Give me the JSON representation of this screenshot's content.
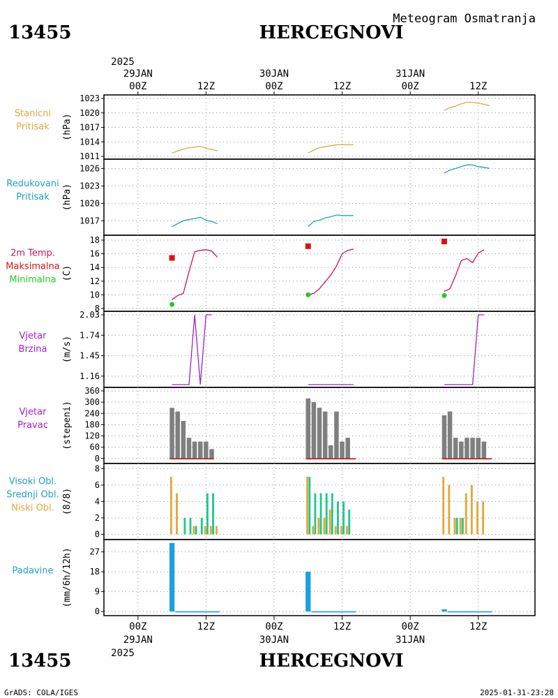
{
  "header": {
    "station_id": "13455",
    "station_name": "HERCEGNOVI",
    "meteogram_title": "Meteogram Osmatranja"
  },
  "footer": {
    "station_id": "13455",
    "station_name": "HERCEGNOVI",
    "credit": "GrADS: COLA/IGES",
    "timestamp": "2025-01-31-23:28"
  },
  "time_axis": {
    "range_hours": [
      -6,
      70
    ],
    "top_year": "2025",
    "bottom_year": "2025",
    "ticks": [
      {
        "h": 0,
        "label": "00Z",
        "date": "29JAN"
      },
      {
        "h": 12,
        "label": "12Z",
        "date": ""
      },
      {
        "h": 24,
        "label": "00Z",
        "date": "30JAN"
      },
      {
        "h": 36,
        "label": "12Z",
        "date": ""
      },
      {
        "h": 48,
        "label": "00Z",
        "date": "31JAN"
      },
      {
        "h": 60,
        "label": "12Z",
        "date": ""
      }
    ]
  },
  "colors": {
    "orange": "#e0a83c",
    "cyan": "#1ea0c8",
    "red": "#e01010",
    "magenta": "#c8145a",
    "green": "#22cc22",
    "purple": "#a020c8",
    "gray": "#7f7f7f",
    "teal": "#1ec88c",
    "blue": "#1ea0dc",
    "dark_red": "#c81414"
  },
  "chart_data": [
    {
      "id": "stanicni",
      "type": "line",
      "labels": [
        {
          "text": "Stanicni",
          "color": "#e0a83c"
        },
        {
          "text": "Pritisak",
          "color": "#e0a83c"
        }
      ],
      "ylabel": "(hPa)",
      "ylim": [
        1011,
        1023
      ],
      "yticks": [
        1011,
        1014,
        1017,
        1020,
        1023
      ],
      "series": [
        {
          "color": "#e0a83c",
          "segments": [
            [
              [
                6,
                1011.7
              ],
              [
                7,
                1012.1
              ],
              [
                8,
                1012.5
              ],
              [
                9,
                1012.8
              ],
              [
                10,
                1012.9
              ],
              [
                11,
                1013.1
              ],
              [
                12,
                1012.6
              ],
              [
                13,
                1012.5
              ],
              [
                14,
                1012.1
              ]
            ],
            [
              [
                30,
                1011.7
              ],
              [
                31,
                1012.3
              ],
              [
                32,
                1012.8
              ],
              [
                33,
                1013.0
              ],
              [
                34,
                1013.2
              ],
              [
                35,
                1013.4
              ],
              [
                36,
                1013.4
              ],
              [
                37,
                1013.4
              ],
              [
                38,
                1013.4
              ]
            ],
            [
              [
                54,
                1020.5
              ],
              [
                55,
                1021.1
              ],
              [
                56,
                1021.4
              ],
              [
                57,
                1021.9
              ],
              [
                58,
                1022.2
              ],
              [
                59,
                1022.2
              ],
              [
                60,
                1022.0
              ],
              [
                61,
                1021.8
              ],
              [
                62,
                1021.5
              ]
            ]
          ]
        }
      ]
    },
    {
      "id": "redukovani",
      "type": "line",
      "labels": [
        {
          "text": "Redukovani",
          "color": "#1ea0c8"
        },
        {
          "text": "Pritisak",
          "color": "#1ea0c8"
        }
      ],
      "ylabel": "(hPa)",
      "ylim": [
        1015,
        1027
      ],
      "yticks": [
        1017,
        1020,
        1023,
        1026
      ],
      "series": [
        {
          "color": "#1ea0c8",
          "segments": [
            [
              [
                6,
                1016.0
              ],
              [
                7,
                1016.5
              ],
              [
                8,
                1017.0
              ],
              [
                9,
                1017.2
              ],
              [
                10,
                1017.4
              ],
              [
                11,
                1017.6
              ],
              [
                12,
                1017.1
              ],
              [
                13,
                1016.9
              ],
              [
                14,
                1016.5
              ]
            ],
            [
              [
                30,
                1016.0
              ],
              [
                31,
                1016.9
              ],
              [
                32,
                1017.1
              ],
              [
                33,
                1017.5
              ],
              [
                34,
                1017.7
              ],
              [
                35,
                1018.0
              ],
              [
                36,
                1017.9
              ],
              [
                37,
                1017.9
              ],
              [
                38,
                1017.9
              ]
            ],
            [
              [
                54,
                1025.2
              ],
              [
                55,
                1025.7
              ],
              [
                56,
                1026.0
              ],
              [
                57,
                1026.3
              ],
              [
                58,
                1026.6
              ],
              [
                59,
                1026.6
              ],
              [
                60,
                1026.3
              ],
              [
                61,
                1026.2
              ],
              [
                62,
                1026.0
              ]
            ]
          ]
        }
      ]
    },
    {
      "id": "temperatura",
      "type": "line",
      "labels": [
        {
          "text": "2m Temp.",
          "color": "#c8145a"
        },
        {
          "text": "Maksimalna",
          "color": "#e01010"
        },
        {
          "text": "Minimalna",
          "color": "#22cc22"
        }
      ],
      "ylabel": "(C)",
      "ylim": [
        8,
        18.2
      ],
      "yticks": [
        8,
        10,
        12,
        14,
        16,
        18
      ],
      "series": [
        {
          "color": "#c8145a",
          "segments": [
            [
              [
                6,
                9.3
              ],
              [
                7,
                9.9
              ],
              [
                8,
                10.2
              ],
              [
                9,
                13.4
              ],
              [
                10,
                16.3
              ],
              [
                11,
                16.5
              ],
              [
                12,
                16.6
              ],
              [
                13,
                16.4
              ],
              [
                14,
                15.5
              ]
            ],
            [
              [
                30,
                10.0
              ],
              [
                31,
                10.2
              ],
              [
                32,
                10.9
              ],
              [
                33,
                11.9
              ],
              [
                34,
                12.9
              ],
              [
                35,
                14.2
              ],
              [
                36,
                16.0
              ],
              [
                37,
                16.5
              ],
              [
                38,
                16.7
              ]
            ],
            [
              [
                54,
                10.5
              ],
              [
                55,
                10.9
              ],
              [
                56,
                12.8
              ],
              [
                57,
                15.0
              ],
              [
                58,
                15.3
              ],
              [
                59,
                14.7
              ],
              [
                60,
                16.1
              ],
              [
                61,
                16.6
              ]
            ]
          ]
        }
      ],
      "max_points": [
        [
          6,
          15.4
        ],
        [
          30,
          17.1
        ],
        [
          54,
          17.8
        ]
      ],
      "min_points": [
        [
          6,
          8.6
        ],
        [
          30,
          10.0
        ],
        [
          54,
          9.9
        ]
      ]
    },
    {
      "id": "brzina",
      "type": "line",
      "labels": [
        {
          "text": "Vjetar",
          "color": "#a020c8"
        },
        {
          "text": "Brzina",
          "color": "#a020c8"
        }
      ],
      "ylabel": "(m/s)",
      "ylim": [
        1.04,
        2.03
      ],
      "yticks": [
        1.16,
        1.45,
        1.74,
        2.03
      ],
      "series": [
        {
          "color": "#a020c8",
          "segments": [
            [
              [
                6,
                1.04
              ],
              [
                7,
                1.04
              ],
              [
                8,
                1.04
              ],
              [
                9,
                1.04
              ],
              [
                10,
                2.03
              ],
              [
                11,
                1.04
              ],
              [
                12,
                2.03
              ],
              [
                13,
                2.03
              ]
            ],
            [
              [
                30,
                1.04
              ],
              [
                31,
                1.04
              ],
              [
                32,
                1.04
              ],
              [
                33,
                1.04
              ],
              [
                34,
                1.04
              ],
              [
                35,
                1.04
              ],
              [
                36,
                1.04
              ],
              [
                37,
                1.04
              ],
              [
                38,
                1.04
              ]
            ],
            [
              [
                54,
                1.04
              ],
              [
                55,
                1.04
              ],
              [
                56,
                1.04
              ],
              [
                57,
                1.04
              ],
              [
                58,
                1.04
              ],
              [
                59,
                1.04
              ],
              [
                60,
                2.03
              ],
              [
                61,
                2.03
              ]
            ]
          ]
        }
      ]
    },
    {
      "id": "pravac",
      "type": "bar",
      "labels": [
        {
          "text": "Vjetar",
          "color": "#a020c8"
        },
        {
          "text": "Pravac",
          "color": "#a020c8"
        }
      ],
      "ylabel": "(stepeni)",
      "ylim": [
        -12,
        360
      ],
      "yticks": [
        0,
        60,
        120,
        180,
        240,
        300,
        360
      ],
      "bar_width_h": 0.8,
      "bars": [
        {
          "color": "#7f7f7f",
          "groups": [
            {
              "start": 6,
              "values": [
                270,
                250,
                200,
                110,
                90,
                90,
                90,
                50
              ]
            },
            {
              "start": 30,
              "values": [
                320,
                300,
                270,
                250,
                70,
                250,
                90,
                110
              ]
            },
            {
              "start": 54,
              "values": [
                230,
                250,
                110,
                90,
                110,
                110,
                110,
                90
              ]
            }
          ]
        }
      ],
      "base_lines": [
        [
          6,
          13
        ],
        [
          30,
          38
        ],
        [
          54,
          62
        ]
      ]
    },
    {
      "id": "oblacnost",
      "type": "bar",
      "labels": [
        {
          "text": "Visoki Obl.",
          "color": "#1ea0c8"
        },
        {
          "text": "Srednji Obl.",
          "color": "#1ea0c8"
        },
        {
          "text": "Niski Obl.",
          "color": "#e0a83c"
        }
      ],
      "ylabel": "(8/8)",
      "ylim": [
        -0.3,
        8.2
      ],
      "yticks": [
        0,
        2,
        4,
        6,
        8
      ],
      "bar_width_h": 0.35,
      "bars": [
        {
          "color": "#e0a83c",
          "offset_h": -0.15,
          "groups": [
            {
              "start": 6,
              "values": [
                7,
                5,
                0,
                0,
                1,
                0,
                1,
                1,
                1
              ]
            },
            {
              "start": 30,
              "values": [
                7,
                1,
                2,
                2,
                3,
                1,
                1,
                1
              ]
            },
            {
              "start": 54,
              "values": [
                7,
                6,
                2,
                2,
                5,
                6,
                4,
                4
              ]
            }
          ]
        },
        {
          "color": "#1ec88c",
          "offset_h": 0.25,
          "groups": [
            {
              "start": 6,
              "values": [
                0,
                0,
                2,
                2,
                1,
                2,
                5,
                5
              ]
            },
            {
              "start": 30,
              "values": [
                7,
                5,
                5,
                5,
                5,
                4,
                4,
                3
              ]
            },
            {
              "start": 54,
              "values": [
                0,
                0,
                2,
                2,
                0,
                0,
                0,
                0
              ]
            }
          ]
        },
        {
          "color": "#1ea0c8",
          "offset_h": 0.05,
          "groups": [
            {
              "start": 6,
              "values": [
                0,
                0,
                0,
                0,
                0,
                0,
                0,
                0
              ]
            },
            {
              "start": 30,
              "values": [
                0,
                0,
                0,
                0,
                0,
                0,
                0,
                0
              ]
            },
            {
              "start": 54,
              "values": [
                0,
                0,
                0,
                0,
                0,
                0,
                0,
                0
              ]
            }
          ]
        }
      ]
    },
    {
      "id": "padavine",
      "type": "bar",
      "labels": [
        {
          "text": "Padavine",
          "color": "#1ea0c8"
        }
      ],
      "ylabel": "(mm/6h/12h)",
      "ylim": [
        -0.6,
        31
      ],
      "yticks": [
        0,
        9,
        18,
        27
      ],
      "bar_width_h": 0.9,
      "bars": [
        {
          "color": "#1ea0dc",
          "groups": [
            {
              "start": 6,
              "values": [
                31
              ]
            },
            {
              "start": 30,
              "values": [
                18
              ]
            },
            {
              "start": 54,
              "values": [
                1
              ]
            }
          ]
        }
      ],
      "base_lines": [
        [
          7,
          14
        ],
        [
          31,
          38
        ],
        [
          55,
          62
        ]
      ]
    }
  ]
}
